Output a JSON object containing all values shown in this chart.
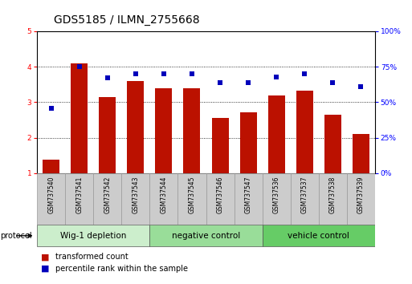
{
  "title": "GDS5185 / ILMN_2755668",
  "samples": [
    "GSM737540",
    "GSM737541",
    "GSM737542",
    "GSM737543",
    "GSM737544",
    "GSM737545",
    "GSM737546",
    "GSM737547",
    "GSM737536",
    "GSM737537",
    "GSM737538",
    "GSM737539"
  ],
  "bar_values": [
    1.38,
    4.1,
    3.15,
    3.6,
    3.4,
    3.4,
    2.55,
    2.72,
    3.2,
    3.32,
    2.65,
    2.1
  ],
  "percentile_values": [
    46,
    75,
    67,
    70,
    70,
    70,
    64,
    64,
    68,
    70,
    64,
    61
  ],
  "bar_color": "#bb1100",
  "dot_color": "#0000bb",
  "ylim_left": [
    1,
    5
  ],
  "ylim_right": [
    0,
    100
  ],
  "yticks_left": [
    1,
    2,
    3,
    4,
    5
  ],
  "yticks_right": [
    0,
    25,
    50,
    75,
    100
  ],
  "ytick_labels_right": [
    "0%",
    "25%",
    "50%",
    "75%",
    "100%"
  ],
  "groups": [
    {
      "label": "Wig-1 depletion",
      "indices": [
        0,
        1,
        2,
        3
      ]
    },
    {
      "label": "negative control",
      "indices": [
        4,
        5,
        6,
        7
      ]
    },
    {
      "label": "vehicle control",
      "indices": [
        8,
        9,
        10,
        11
      ]
    }
  ],
  "group_colors": [
    "#cceecc",
    "#99dd99",
    "#66cc66"
  ],
  "protocol_label": "protocol",
  "legend_bar_label": "transformed count",
  "legend_dot_label": "percentile rank within the sample",
  "background_color": "#ffffff",
  "bar_bottom": 1.0,
  "title_fontsize": 10,
  "tick_fontsize": 6.5,
  "label_fontsize": 7.5,
  "sample_fontsize": 5.5,
  "group_fontsize": 7.5
}
